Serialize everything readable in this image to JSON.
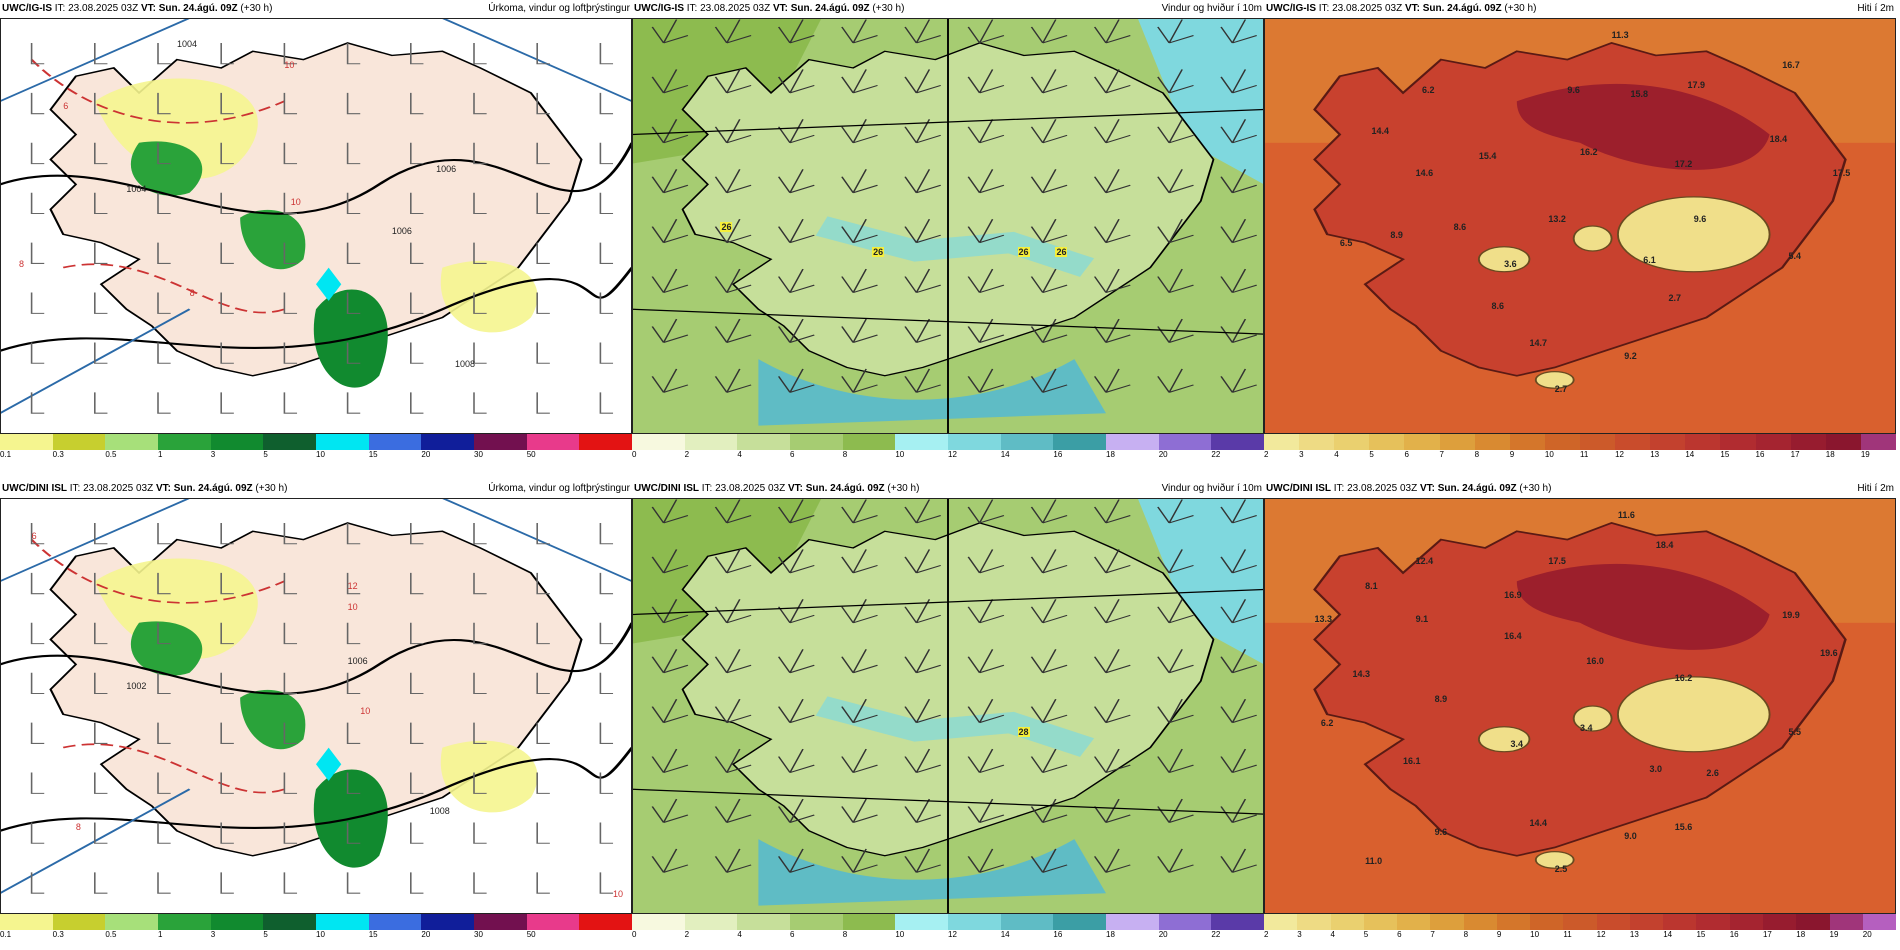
{
  "panels": [
    {
      "id": "p1",
      "model": "UWC/IG-IS",
      "it": "IT: 23.08.2025 03Z",
      "vt_label": "VT:",
      "vt": "Sun. 24.ágú. 09Z",
      "offset": "(+30 h)",
      "title": "Úrkoma, vindur og loftþrýstingur",
      "kind": "precip",
      "scale_labels": [
        "0.1",
        "0.3",
        "0.5",
        "1",
        "3",
        "5",
        "10",
        "15",
        "20",
        "30",
        "50",
        ""
      ],
      "scale_colors": [
        "#f5f58f",
        "#c7cf2f",
        "#a7e07a",
        "#2aa33a",
        "#118a2f",
        "#0f5f2e",
        "#00e6f2",
        "#3b6de0",
        "#101e9a",
        "#72104f",
        "#e83a8b",
        "#e31313"
      ],
      "labels": [
        "1004",
        "1004",
        "1006",
        "1006",
        "1008",
        "10",
        "10",
        "8",
        "8",
        "6"
      ]
    },
    {
      "id": "p2",
      "model": "UWC/IG-IS",
      "it": "IT: 23.08.2025 03Z",
      "vt_label": "VT:",
      "vt": "Sun. 24.ágú. 09Z",
      "offset": "(+30 h)",
      "title": "Vindur og hviður í 10m",
      "kind": "wind",
      "scale_labels": [
        "0",
        "2",
        "4",
        "6",
        "8",
        "10",
        "12",
        "14",
        "16",
        "18",
        "20",
        "22"
      ],
      "scale_colors": [
        "#f7f9df",
        "#e2efbf",
        "#c6df9a",
        "#a6cc72",
        "#8dbb4f",
        "#a6f0f2",
        "#7fd8de",
        "#5fbcc5",
        "#3b9ea5",
        "#c7b0f2",
        "#8e6ed4",
        "#5a3aa8"
      ],
      "labels": [
        "26",
        "26",
        "26",
        "26"
      ]
    },
    {
      "id": "p3",
      "model": "UWC/IG-IS",
      "it": "IT: 23.08.2025 03Z",
      "vt_label": "VT:",
      "vt": "Sun. 24.ágú. 09Z",
      "offset": "(+30 h)",
      "title": "Hiti í 2m",
      "kind": "temp",
      "scale_labels": [
        "2",
        "3",
        "4",
        "5",
        "6",
        "7",
        "8",
        "9",
        "10",
        "11",
        "12",
        "13",
        "14",
        "15",
        "16",
        "17",
        "18",
        "19"
      ],
      "scale_colors": [
        "#f2e99c",
        "#eedb84",
        "#ead06f",
        "#e6c15b",
        "#e2b14a",
        "#dd9f3c",
        "#d98a31",
        "#d4762b",
        "#cf6528",
        "#cc5a2a",
        "#c94c2c",
        "#c3412e",
        "#bb362f",
        "#b12c30",
        "#a52430",
        "#971c2f",
        "#8a162e",
        "#a0357a"
      ],
      "labels": [
        "11.3",
        "6.2",
        "9.6",
        "15.8",
        "17.9",
        "16.7",
        "14.4",
        "15.4",
        "16.2",
        "17.2",
        "18.4",
        "14.6",
        "17.5",
        "13.2",
        "9.6",
        "6.5",
        "8.9",
        "8.6",
        "3.6",
        "6.1",
        "5.4",
        "2.7",
        "8.6",
        "14.7",
        "9.2",
        "2.7"
      ]
    },
    {
      "id": "p4",
      "model": "UWC/DINI ISL",
      "it": "IT: 23.08.2025 03Z",
      "vt_label": "VT:",
      "vt": "Sun. 24.ágú. 09Z",
      "offset": "(+30 h)",
      "title": "Úrkoma, vindur og loftþrýstingur",
      "kind": "precip",
      "scale_labels": [
        "0.1",
        "0.3",
        "0.5",
        "1",
        "3",
        "5",
        "10",
        "15",
        "20",
        "30",
        "50",
        ""
      ],
      "scale_colors": [
        "#f5f58f",
        "#c7cf2f",
        "#a7e07a",
        "#2aa33a",
        "#118a2f",
        "#0f5f2e",
        "#00e6f2",
        "#3b6de0",
        "#101e9a",
        "#72104f",
        "#e83a8b",
        "#e31313"
      ],
      "labels": [
        "1002",
        "1006",
        "1008",
        "12",
        "10",
        "10",
        "8",
        "6",
        "10"
      ]
    },
    {
      "id": "p5",
      "model": "UWC/DINI ISL",
      "it": "IT: 23.08.2025 03Z",
      "vt_label": "VT:",
      "vt": "Sun. 24.ágú. 09Z",
      "offset": "(+30 h)",
      "title": "Vindur og hviður í 10m",
      "kind": "wind",
      "scale_labels": [
        "0",
        "2",
        "4",
        "6",
        "8",
        "10",
        "12",
        "14",
        "16",
        "18",
        "20",
        "22"
      ],
      "scale_colors": [
        "#f7f9df",
        "#e2efbf",
        "#c6df9a",
        "#a6cc72",
        "#8dbb4f",
        "#a6f0f2",
        "#7fd8de",
        "#5fbcc5",
        "#3b9ea5",
        "#c7b0f2",
        "#8e6ed4",
        "#5a3aa8"
      ],
      "labels": [
        "28"
      ]
    },
    {
      "id": "p6",
      "model": "UWC/DINI ISL",
      "it": "IT: 23.08.2025 03Z",
      "vt_label": "VT:",
      "vt": "Sun. 24.ágú. 09Z",
      "offset": "(+30 h)",
      "title": "Hiti í 2m",
      "kind": "temp",
      "scale_labels": [
        "2",
        "3",
        "4",
        "5",
        "6",
        "7",
        "8",
        "9",
        "10",
        "11",
        "12",
        "13",
        "14",
        "15",
        "16",
        "17",
        "18",
        "19",
        "20"
      ],
      "scale_colors": [
        "#f2e99c",
        "#eedb84",
        "#ead06f",
        "#e6c15b",
        "#e2b14a",
        "#dd9f3c",
        "#d98a31",
        "#d4762b",
        "#cf6528",
        "#cc5a2a",
        "#c94c2c",
        "#c3412e",
        "#bb362f",
        "#b12c30",
        "#a52430",
        "#971c2f",
        "#8a162e",
        "#a0357a",
        "#b55fbf"
      ],
      "labels": [
        "11.6",
        "12.4",
        "17.5",
        "18.4",
        "8.1",
        "16.9",
        "13.3",
        "9.1",
        "16.4",
        "19.9",
        "16.0",
        "19.6",
        "14.3",
        "16.2",
        "8.9",
        "6.2",
        "3.4",
        "3.4",
        "5.5",
        "16.1",
        "3.0",
        "2.6",
        "9.6",
        "14.4",
        "9.0",
        "15.6",
        "11.0",
        "2.5"
      ]
    }
  ]
}
